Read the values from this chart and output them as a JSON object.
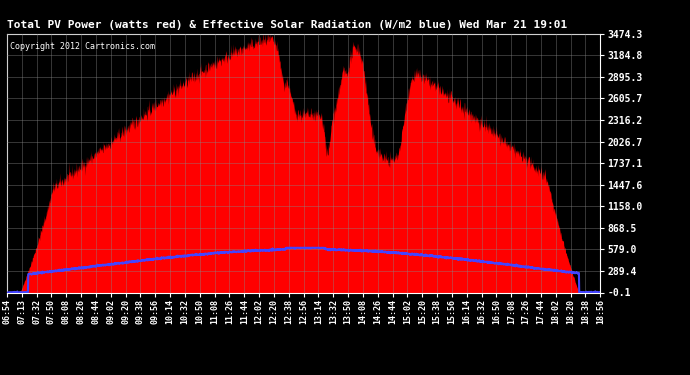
{
  "title": "Total PV Power (watts red) & Effective Solar Radiation (W/m2 blue) Wed Mar 21 19:01",
  "copyright": "Copyright 2012 Cartronics.com",
  "bg_color": "#000000",
  "red_color": "#ff0000",
  "blue_color": "#4444ff",
  "ymin": -0.1,
  "ymax": 3474.3,
  "yticks": [
    -0.1,
    289.4,
    579.0,
    868.5,
    1158.0,
    1447.6,
    1737.1,
    2026.7,
    2316.2,
    2605.7,
    2895.3,
    3184.8,
    3474.3
  ],
  "ytick_labels": [
    "-0.1",
    "289.4",
    "579.0",
    "868.5",
    "1158.0",
    "1447.6",
    "1737.1",
    "2026.7",
    "2316.2",
    "2605.7",
    "2895.3",
    "3184.8",
    "3474.3"
  ],
  "xtick_labels": [
    "06:54",
    "07:13",
    "07:32",
    "07:50",
    "08:08",
    "08:26",
    "08:44",
    "09:02",
    "09:20",
    "09:38",
    "09:56",
    "10:14",
    "10:32",
    "10:50",
    "11:08",
    "11:26",
    "11:44",
    "12:02",
    "12:20",
    "12:38",
    "12:56",
    "13:14",
    "13:32",
    "13:50",
    "14:08",
    "14:26",
    "14:44",
    "15:02",
    "15:20",
    "15:38",
    "15:56",
    "16:14",
    "16:32",
    "16:50",
    "17:08",
    "17:26",
    "17:44",
    "18:02",
    "18:20",
    "18:38",
    "18:56"
  ],
  "xmin_min": 414,
  "xmax_min": 1136
}
